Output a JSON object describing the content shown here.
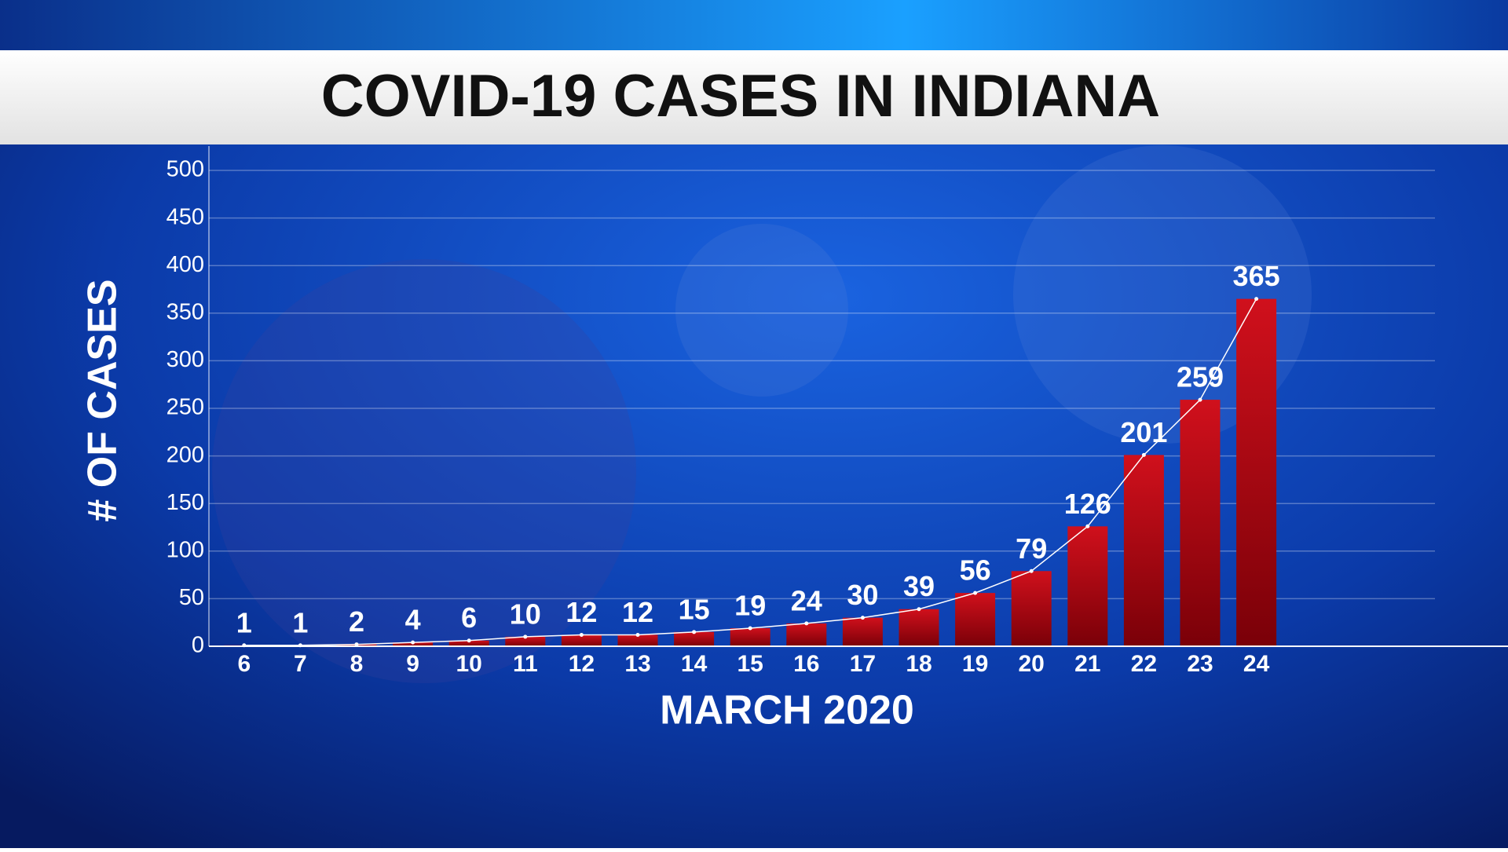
{
  "chart_data": {
    "type": "bar",
    "title": "COVID-19 CASES IN INDIANA",
    "x_label": "MARCH 2020",
    "y_label": "# OF CASES",
    "categories": [
      "6",
      "7",
      "8",
      "9",
      "10",
      "11",
      "12",
      "13",
      "14",
      "15",
      "16",
      "17",
      "18",
      "19",
      "20",
      "21",
      "22",
      "23",
      "24"
    ],
    "values": [
      1,
      1,
      2,
      4,
      6,
      10,
      12,
      12,
      15,
      19,
      24,
      30,
      39,
      56,
      79,
      126,
      201,
      259,
      365
    ],
    "color": "#b00010",
    "line_color": "#ffffff",
    "ylim": [
      0,
      500
    ],
    "yticks": [
      0,
      50,
      100,
      150,
      200,
      250,
      300,
      350,
      400,
      450,
      500
    ],
    "grid": true
  }
}
